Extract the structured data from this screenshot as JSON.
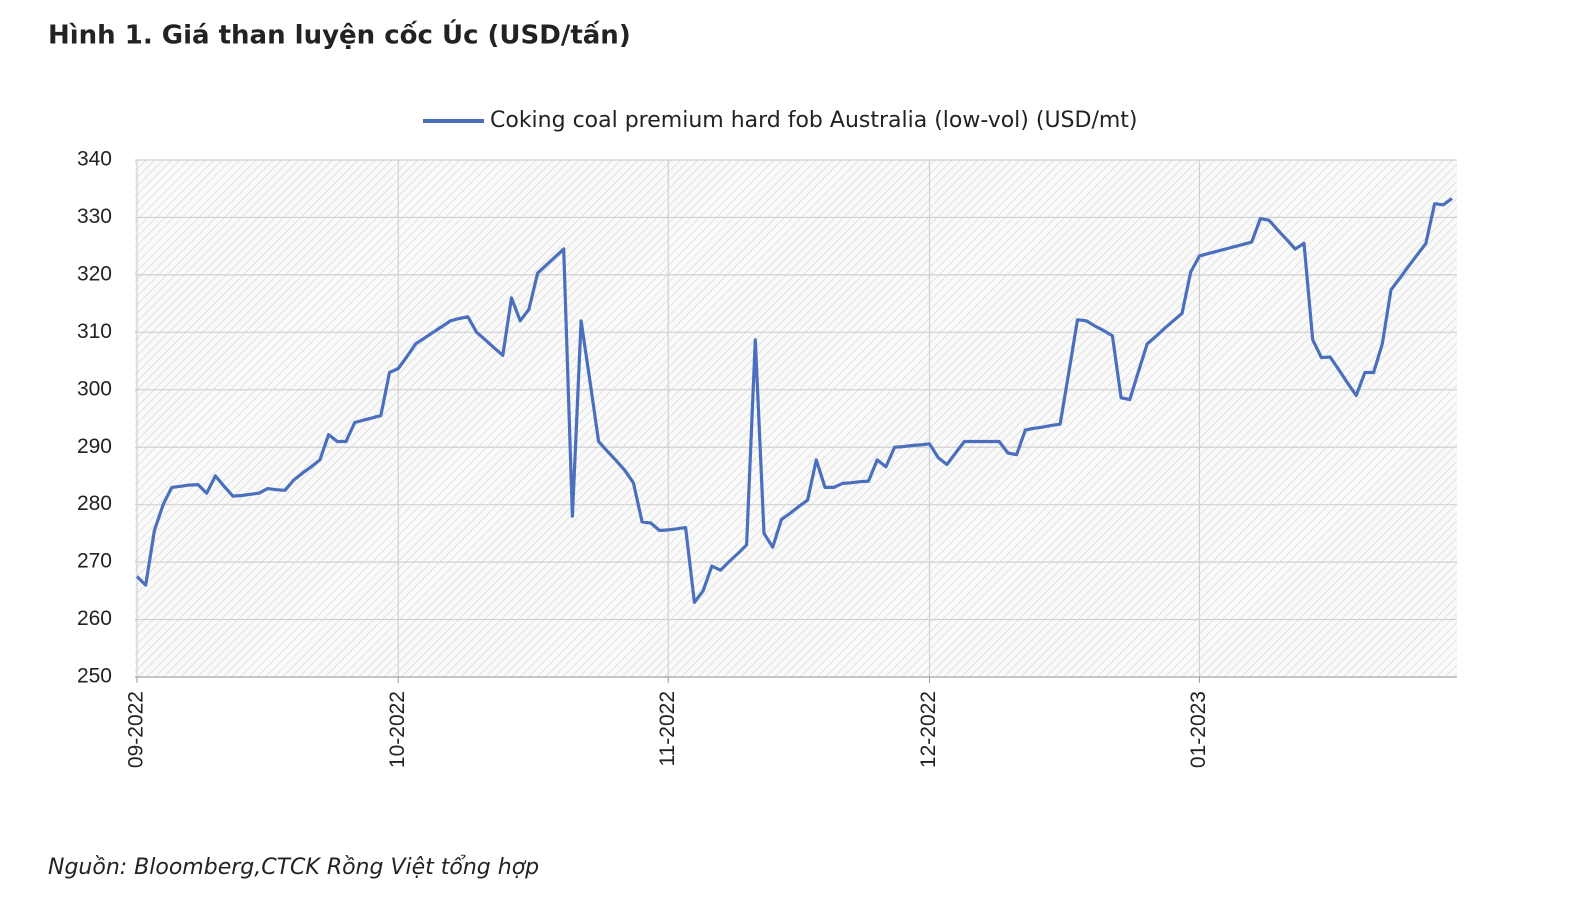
{
  "chart_data": {
    "type": "line",
    "title": "Hình 1. Giá than luyện cốc Úc (USD/tấn)",
    "source": "Nguồn: Bloomberg,CTCK Rồng Việt tổng hợp",
    "categories": [
      "09-2022",
      null,
      null,
      null,
      null,
      null,
      null,
      null,
      null,
      null,
      null,
      null,
      null,
      null,
      null,
      null,
      null,
      null,
      null,
      null,
      null,
      null,
      null,
      null,
      null,
      null,
      null,
      null,
      null,
      null,
      "10-2022",
      null,
      null,
      null,
      null,
      null,
      null,
      null,
      null,
      null,
      null,
      null,
      null,
      null,
      null,
      null,
      null,
      null,
      null,
      null,
      null,
      null,
      null,
      null,
      null,
      null,
      null,
      null,
      null,
      null,
      null,
      "11-2022",
      null,
      null,
      null,
      null,
      null,
      null,
      null,
      null,
      null,
      null,
      null,
      null,
      null,
      null,
      null,
      null,
      null,
      null,
      null,
      null,
      null,
      null,
      null,
      null,
      null,
      null,
      null,
      null,
      null,
      "12-2022",
      null,
      null,
      null,
      null,
      null,
      null,
      null,
      null,
      null,
      null,
      null,
      null,
      null,
      null,
      null,
      null,
      null,
      null,
      null,
      null,
      null,
      null,
      null,
      null,
      null,
      null,
      null,
      null,
      null,
      null,
      "01-2023",
      null,
      null,
      null,
      null,
      null,
      null,
      null,
      null,
      null,
      null,
      null,
      null,
      null,
      null,
      null,
      null,
      null,
      null,
      null,
      null,
      null,
      null,
      null,
      null,
      null,
      null,
      null,
      null,
      null
    ],
    "series": [
      {
        "name": "Coking coal premium hard fob Australia (low-vol) (USD/mt)",
        "color": "#4a70bd",
        "values": [
          267.5,
          266,
          275.5,
          280,
          283,
          283.2,
          283.4,
          283.5,
          282,
          285,
          283.2,
          281.5,
          281.6,
          281.8,
          282,
          282.8,
          282.6,
          282.5,
          284.3,
          285.5,
          286.6,
          287.8,
          292.2,
          291,
          291,
          294.3,
          294.7,
          295.1,
          295.5,
          303,
          303.7,
          305.8,
          308,
          309,
          310,
          311,
          312,
          312.4,
          312.7,
          310,
          308.7,
          307.3,
          306,
          316,
          312,
          314,
          320.3,
          321.7,
          323.1,
          324.5,
          278,
          312,
          301.7,
          291,
          289.3,
          287.7,
          286,
          283.8,
          277,
          276.8,
          275.5,
          275.6,
          275.8,
          276,
          263,
          265,
          269.3,
          268.6,
          270.1,
          271.5,
          273,
          308.7,
          275,
          272.6,
          277.4,
          278.5,
          279.7,
          280.8,
          287.8,
          283,
          283,
          283.7,
          283.8,
          284,
          284.1,
          287.8,
          286.6,
          290,
          290.1,
          290.3,
          290.4,
          290.6,
          288.2,
          287,
          289,
          291,
          291,
          291,
          291,
          291,
          289,
          288.7,
          293,
          293.3,
          293.5,
          293.8,
          294,
          303,
          312.2,
          312,
          311.1,
          310.3,
          309.4,
          298.6,
          298.3,
          303.2,
          308,
          309.3,
          310.7,
          312,
          313.3,
          320.5,
          323.3,
          323.7,
          324.1,
          324.5,
          324.9,
          325.3,
          325.7,
          329.8,
          329.5,
          327.8,
          326.2,
          324.5,
          325.5,
          308.7,
          305.6,
          305.7,
          303.5,
          301.2,
          299,
          303,
          303,
          308,
          317.4,
          319.4,
          321.5,
          323.5,
          325.5,
          332.4,
          332.2,
          333.3
        ]
      }
    ],
    "ylim": [
      250,
      340
    ],
    "yticks": [
      250,
      260,
      270,
      280,
      290,
      300,
      310,
      320,
      330,
      340
    ],
    "grid": true,
    "legend": "top"
  }
}
